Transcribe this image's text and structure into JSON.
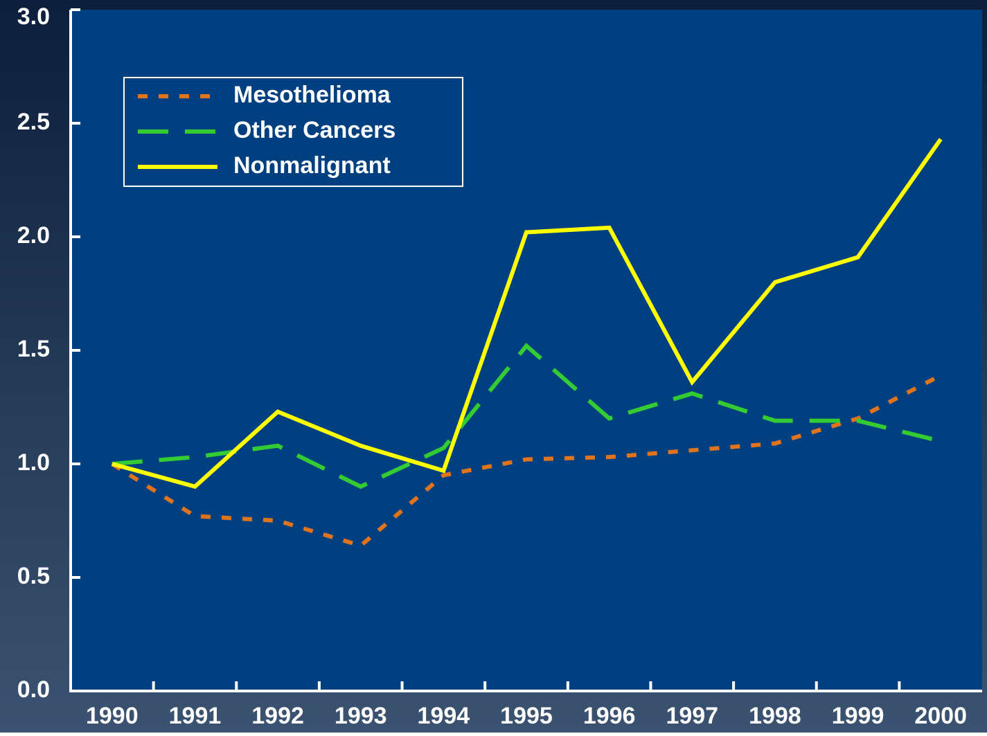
{
  "chart_data": {
    "type": "line",
    "categories": [
      "1990",
      "1991",
      "1992",
      "1993",
      "1994",
      "1995",
      "1996",
      "1997",
      "1998",
      "1999",
      "2000"
    ],
    "series": [
      {
        "name": "Mesothelioma",
        "color": "#e0741c",
        "style": "dotted",
        "values": [
          1.0,
          0.77,
          0.75,
          0.64,
          0.95,
          1.02,
          1.03,
          1.06,
          1.09,
          1.2,
          1.39
        ]
      },
      {
        "name": "Other Cancers",
        "color": "#33cc33",
        "style": "dashed",
        "values": [
          1.0,
          1.03,
          1.08,
          0.9,
          1.07,
          1.52,
          1.2,
          1.31,
          1.19,
          1.19,
          1.1
        ]
      },
      {
        "name": "Nonmalignant",
        "color": "#ffff00",
        "style": "solid",
        "values": [
          1.0,
          0.9,
          1.23,
          1.08,
          0.97,
          2.02,
          2.04,
          1.36,
          1.8,
          1.91,
          2.43
        ]
      }
    ],
    "ylim": [
      0,
      3
    ],
    "yticks": [
      {
        "value": 0,
        "label": "0.0"
      },
      0.5,
      {
        "value": 1,
        "label": "1.0"
      },
      1.5,
      {
        "value": 2,
        "label": "2.0"
      },
      2.5,
      {
        "value": 3,
        "label": "3.0"
      }
    ],
    "legend": "upper left"
  }
}
